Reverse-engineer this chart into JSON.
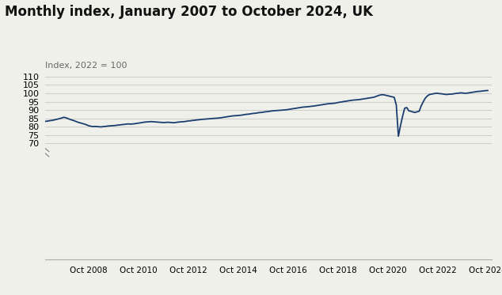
{
  "title": "Monthly index, January 2007 to October 2024, UK",
  "ylabel": "Index, 2022 = 100",
  "line_color": "#1a3f6f",
  "background_color": "#f0f0eb",
  "ylim": [
    0,
    110
  ],
  "grid_color": "#cccccc",
  "title_fontsize": 12,
  "ylabel_fontsize": 8,
  "series": {
    "dates_numeric": [
      2007.0,
      2007.083,
      2007.167,
      2007.25,
      2007.333,
      2007.417,
      2007.5,
      2007.583,
      2007.667,
      2007.75,
      2007.833,
      2007.917,
      2008.0,
      2008.083,
      2008.167,
      2008.25,
      2008.333,
      2008.417,
      2008.5,
      2008.583,
      2008.667,
      2008.75,
      2008.833,
      2008.917,
      2009.0,
      2009.083,
      2009.167,
      2009.25,
      2009.333,
      2009.417,
      2009.5,
      2009.583,
      2009.667,
      2009.75,
      2009.833,
      2009.917,
      2010.0,
      2010.083,
      2010.167,
      2010.25,
      2010.333,
      2010.417,
      2010.5,
      2010.583,
      2010.667,
      2010.75,
      2010.833,
      2010.917,
      2011.0,
      2011.083,
      2011.167,
      2011.25,
      2011.333,
      2011.417,
      2011.5,
      2011.583,
      2011.667,
      2011.75,
      2011.833,
      2011.917,
      2012.0,
      2012.083,
      2012.167,
      2012.25,
      2012.333,
      2012.417,
      2012.5,
      2012.583,
      2012.667,
      2012.75,
      2012.833,
      2012.917,
      2013.0,
      2013.083,
      2013.167,
      2013.25,
      2013.333,
      2013.417,
      2013.5,
      2013.583,
      2013.667,
      2013.75,
      2013.833,
      2013.917,
      2014.0,
      2014.083,
      2014.167,
      2014.25,
      2014.333,
      2014.417,
      2014.5,
      2014.583,
      2014.667,
      2014.75,
      2014.833,
      2014.917,
      2015.0,
      2015.083,
      2015.167,
      2015.25,
      2015.333,
      2015.417,
      2015.5,
      2015.583,
      2015.667,
      2015.75,
      2015.833,
      2015.917,
      2016.0,
      2016.083,
      2016.167,
      2016.25,
      2016.333,
      2016.417,
      2016.5,
      2016.583,
      2016.667,
      2016.75,
      2016.833,
      2016.917,
      2017.0,
      2017.083,
      2017.167,
      2017.25,
      2017.333,
      2017.417,
      2017.5,
      2017.583,
      2017.667,
      2017.75,
      2017.833,
      2017.917,
      2018.0,
      2018.083,
      2018.167,
      2018.25,
      2018.333,
      2018.417,
      2018.5,
      2018.583,
      2018.667,
      2018.75,
      2018.833,
      2018.917,
      2019.0,
      2019.083,
      2019.167,
      2019.25,
      2019.333,
      2019.417,
      2019.5,
      2019.583,
      2019.667,
      2019.75,
      2019.833,
      2019.917,
      2020.0,
      2020.083,
      2020.167,
      2020.25,
      2020.333,
      2020.417,
      2020.5,
      2020.583,
      2020.667,
      2020.75,
      2020.833,
      2020.917,
      2021.0,
      2021.083,
      2021.167,
      2021.25,
      2021.333,
      2021.417,
      2021.5,
      2021.583,
      2021.667,
      2021.75,
      2021.833,
      2021.917,
      2022.0,
      2022.083,
      2022.167,
      2022.25,
      2022.333,
      2022.417,
      2022.5,
      2022.583,
      2022.667,
      2022.75,
      2022.833,
      2022.917,
      2023.0,
      2023.083,
      2023.167,
      2023.25,
      2023.333,
      2023.417,
      2023.5,
      2023.583,
      2023.667,
      2023.75,
      2023.833,
      2023.917,
      2024.0,
      2024.083,
      2024.167,
      2024.25,
      2024.333,
      2024.417,
      2024.5,
      2024.583,
      2024.667,
      2024.75
    ],
    "values": [
      83.1,
      83.3,
      83.5,
      83.7,
      83.9,
      84.2,
      84.5,
      84.8,
      85.2,
      85.6,
      85.3,
      84.8,
      84.3,
      83.9,
      83.5,
      83.0,
      82.5,
      82.2,
      81.8,
      81.5,
      81.0,
      80.5,
      80.2,
      80.0,
      80.1,
      80.0,
      79.9,
      79.8,
      80.0,
      80.1,
      80.3,
      80.4,
      80.5,
      80.6,
      80.7,
      80.9,
      81.0,
      81.2,
      81.3,
      81.5,
      81.6,
      81.5,
      81.6,
      81.7,
      81.9,
      82.1,
      82.3,
      82.5,
      82.7,
      82.8,
      82.9,
      83.0,
      82.9,
      82.8,
      82.7,
      82.6,
      82.5,
      82.4,
      82.5,
      82.6,
      82.5,
      82.4,
      82.3,
      82.5,
      82.7,
      82.8,
      82.9,
      83.0,
      83.2,
      83.4,
      83.5,
      83.7,
      83.8,
      84.0,
      84.1,
      84.3,
      84.4,
      84.5,
      84.6,
      84.7,
      84.8,
      84.9,
      85.0,
      85.1,
      85.2,
      85.4,
      85.6,
      85.8,
      86.0,
      86.2,
      86.4,
      86.5,
      86.6,
      86.7,
      86.8,
      87.0,
      87.2,
      87.4,
      87.5,
      87.7,
      87.9,
      88.0,
      88.2,
      88.4,
      88.5,
      88.7,
      88.9,
      89.0,
      89.2,
      89.4,
      89.5,
      89.6,
      89.7,
      89.8,
      89.9,
      90.0,
      90.1,
      90.3,
      90.5,
      90.7,
      90.9,
      91.1,
      91.3,
      91.5,
      91.7,
      91.8,
      91.9,
      92.0,
      92.2,
      92.3,
      92.5,
      92.7,
      92.9,
      93.1,
      93.3,
      93.5,
      93.7,
      93.8,
      93.9,
      94.0,
      94.2,
      94.5,
      94.7,
      94.9,
      95.1,
      95.3,
      95.5,
      95.7,
      95.9,
      96.0,
      96.1,
      96.2,
      96.4,
      96.6,
      96.8,
      97.0,
      97.2,
      97.4,
      97.6,
      98.0,
      98.5,
      98.9,
      99.2,
      99.1,
      98.8,
      98.5,
      98.2,
      97.9,
      97.6,
      93.0,
      74.2,
      80.5,
      86.0,
      91.0,
      91.5,
      89.5,
      89.2,
      88.8,
      88.5,
      88.9,
      89.2,
      92.5,
      95.0,
      97.2,
      98.5,
      99.3,
      99.5,
      99.8,
      100.0,
      100.0,
      99.8,
      99.7,
      99.5,
      99.3,
      99.4,
      99.5,
      99.6,
      99.8,
      100.0,
      100.1,
      100.3,
      100.2,
      100.0,
      100.1,
      100.3,
      100.5,
      100.7,
      100.9,
      101.1,
      101.2,
      101.3,
      101.5,
      101.6,
      101.7
    ]
  }
}
